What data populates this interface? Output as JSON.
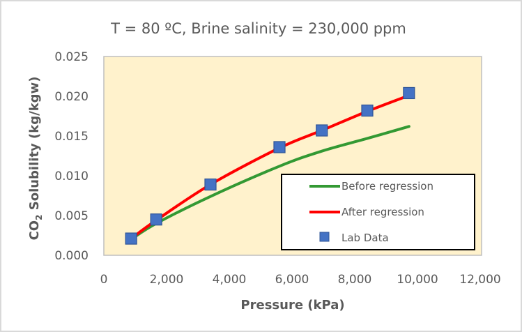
{
  "chart_data": {
    "type": "line",
    "title": "T = 80 ºC, Brine salinity = 230,000 ppm",
    "xlabel": "Pressure (kPa)",
    "ylabel": {
      "prefix": "CO",
      "subscript": "2",
      "suffix": " Solubility (kg/kgw)"
    },
    "xlim": [
      0,
      12000
    ],
    "ylim": [
      0,
      0.025
    ],
    "x_ticks": [
      0,
      2000,
      4000,
      6000,
      8000,
      10000,
      12000
    ],
    "x_tick_labels": [
      "0",
      "2,000",
      "4,000",
      "6,000",
      "8,000",
      "10,000",
      "12,000"
    ],
    "y_ticks": [
      0,
      0.005,
      0.01,
      0.015,
      0.02,
      0.025
    ],
    "y_tick_labels": [
      "0.000",
      "0.005",
      "0.010",
      "0.015",
      "0.020",
      "0.025"
    ],
    "grid": false,
    "plot_background": "#FFF2CC",
    "legend_position": "bottom-right",
    "series": [
      {
        "name": "Before regression",
        "kind": "line",
        "color": "#339933",
        "x": [
          870,
          1670,
          3400,
          5600,
          6950,
          8400,
          9730
        ],
        "y": [
          0.002,
          0.004,
          0.0074,
          0.0112,
          0.0131,
          0.0147,
          0.0162
        ]
      },
      {
        "name": "After regression",
        "kind": "line",
        "color": "#FF0000",
        "x": [
          870,
          1670,
          3400,
          5600,
          6950,
          8400,
          9730
        ],
        "y": [
          0.0021,
          0.0044,
          0.0089,
          0.0135,
          0.0157,
          0.0181,
          0.0201
        ]
      },
      {
        "name": "Lab Data",
        "kind": "marker",
        "color": "#4472C4",
        "edge_color": "#2F5597",
        "x": [
          870,
          1670,
          3400,
          5600,
          6950,
          8400,
          9730
        ],
        "y": [
          0.0021,
          0.0045,
          0.0089,
          0.0136,
          0.0157,
          0.0182,
          0.0204
        ]
      }
    ]
  }
}
